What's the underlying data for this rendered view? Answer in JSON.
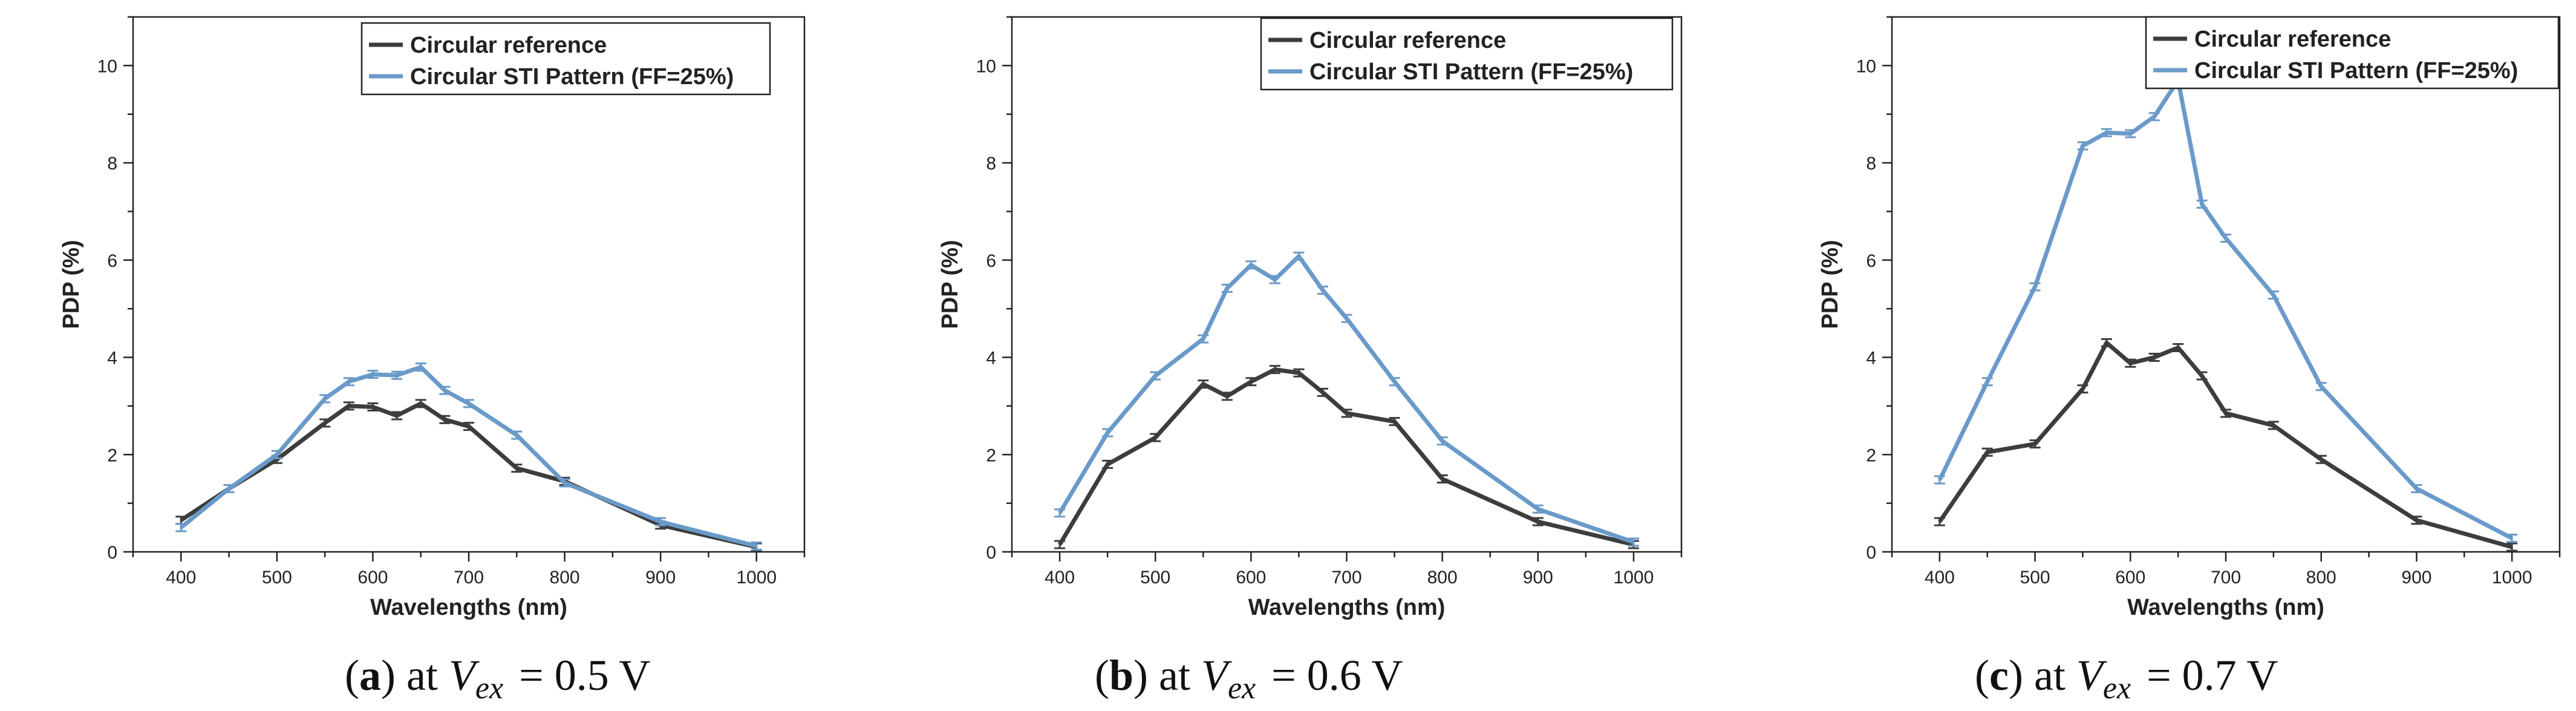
{
  "colors": {
    "reference": "#3d3d3d",
    "sti": "#6a9ac9",
    "axis": "#222222"
  },
  "chart_data": [
    {
      "type": "line",
      "panel": "a",
      "caption": {
        "letter": "a",
        "open": "(",
        "close": ")",
        "at": "at",
        "v": "V",
        "sub": "ex",
        "eq": "=",
        "value": "0.5 V"
      },
      "xlabel": "Wavelengths (nm)",
      "ylabel": "PDP (%)",
      "xlim": [
        350,
        1050
      ],
      "ylim": [
        0,
        11
      ],
      "xticks": [
        400,
        500,
        600,
        700,
        800,
        900,
        1000
      ],
      "yticks": [
        0,
        2,
        4,
        6,
        8,
        10
      ],
      "legend_position": "top-right",
      "series": [
        {
          "name": "Circular reference",
          "color_key": "reference",
          "x": [
            400,
            450,
            500,
            550,
            575,
            600,
            625,
            650,
            675,
            700,
            750,
            800,
            900,
            1000
          ],
          "y": [
            0.65,
            1.3,
            1.9,
            2.65,
            3.0,
            2.98,
            2.8,
            3.05,
            2.72,
            2.58,
            1.72,
            1.45,
            0.55,
            0.1
          ]
        },
        {
          "name": "Circular STI Pattern (FF=25%)",
          "color_key": "sti",
          "x": [
            400,
            450,
            500,
            550,
            575,
            600,
            625,
            650,
            675,
            700,
            750,
            800,
            900,
            1000
          ],
          "y": [
            0.5,
            1.3,
            2.0,
            3.15,
            3.5,
            3.65,
            3.63,
            3.8,
            3.32,
            3.05,
            2.4,
            1.42,
            0.62,
            0.12
          ]
        }
      ]
    },
    {
      "type": "line",
      "panel": "b",
      "caption": {
        "letter": "b",
        "open": "(",
        "close": ")",
        "at": "at",
        "v": "V",
        "sub": "ex",
        "eq": "=",
        "value": "0.6 V"
      },
      "xlabel": "Wavelengths (nm)",
      "ylabel": "PDP (%)",
      "xlim": [
        350,
        1050
      ],
      "ylim": [
        0,
        11
      ],
      "xticks": [
        400,
        500,
        600,
        700,
        800,
        900,
        1000
      ],
      "yticks": [
        0,
        2,
        4,
        6,
        8,
        10
      ],
      "legend_position": "top-right",
      "series": [
        {
          "name": "Circular reference",
          "color_key": "reference",
          "x": [
            400,
            450,
            500,
            550,
            575,
            600,
            625,
            650,
            675,
            700,
            750,
            800,
            900,
            1000
          ],
          "y": [
            0.15,
            1.8,
            2.35,
            3.45,
            3.2,
            3.5,
            3.75,
            3.68,
            3.28,
            2.85,
            2.68,
            1.5,
            0.62,
            0.15
          ]
        },
        {
          "name": "Circular STI Pattern (FF=25%)",
          "color_key": "sti",
          "x": [
            400,
            450,
            500,
            550,
            575,
            600,
            625,
            650,
            675,
            700,
            750,
            800,
            900,
            1000
          ],
          "y": [
            0.8,
            2.45,
            3.62,
            4.38,
            5.42,
            5.9,
            5.6,
            6.08,
            5.38,
            4.8,
            3.5,
            2.28,
            0.88,
            0.2
          ]
        }
      ]
    },
    {
      "type": "line",
      "panel": "c",
      "caption": {
        "letter": "c",
        "open": "(",
        "close": ")",
        "at": "at",
        "v": "V",
        "sub": "ex",
        "eq": "=",
        "value": "0.7 V"
      },
      "xlabel": "Wavelengths (nm)",
      "ylabel": "PDP (%)",
      "xlim": [
        350,
        1050
      ],
      "ylim": [
        0,
        11
      ],
      "xticks": [
        400,
        500,
        600,
        700,
        800,
        900,
        1000
      ],
      "yticks": [
        0,
        2,
        4,
        6,
        8,
        10
      ],
      "legend_position": "top-right",
      "series": [
        {
          "name": "Circular reference",
          "color_key": "reference",
          "x": [
            400,
            450,
            500,
            550,
            575,
            600,
            625,
            650,
            675,
            700,
            750,
            800,
            900,
            1000
          ],
          "y": [
            0.62,
            2.05,
            2.22,
            3.35,
            4.3,
            3.88,
            4.0,
            4.2,
            3.62,
            2.85,
            2.6,
            1.9,
            0.65,
            0.1
          ]
        },
        {
          "name": "Circular STI Pattern (FF=25%)",
          "color_key": "sti",
          "x": [
            400,
            450,
            500,
            550,
            575,
            600,
            625,
            650,
            675,
            700,
            750,
            800,
            900,
            1000
          ],
          "y": [
            1.48,
            3.5,
            5.45,
            8.35,
            8.62,
            8.6,
            8.95,
            9.7,
            7.15,
            6.45,
            5.28,
            3.4,
            1.3,
            0.28
          ]
        }
      ]
    }
  ]
}
